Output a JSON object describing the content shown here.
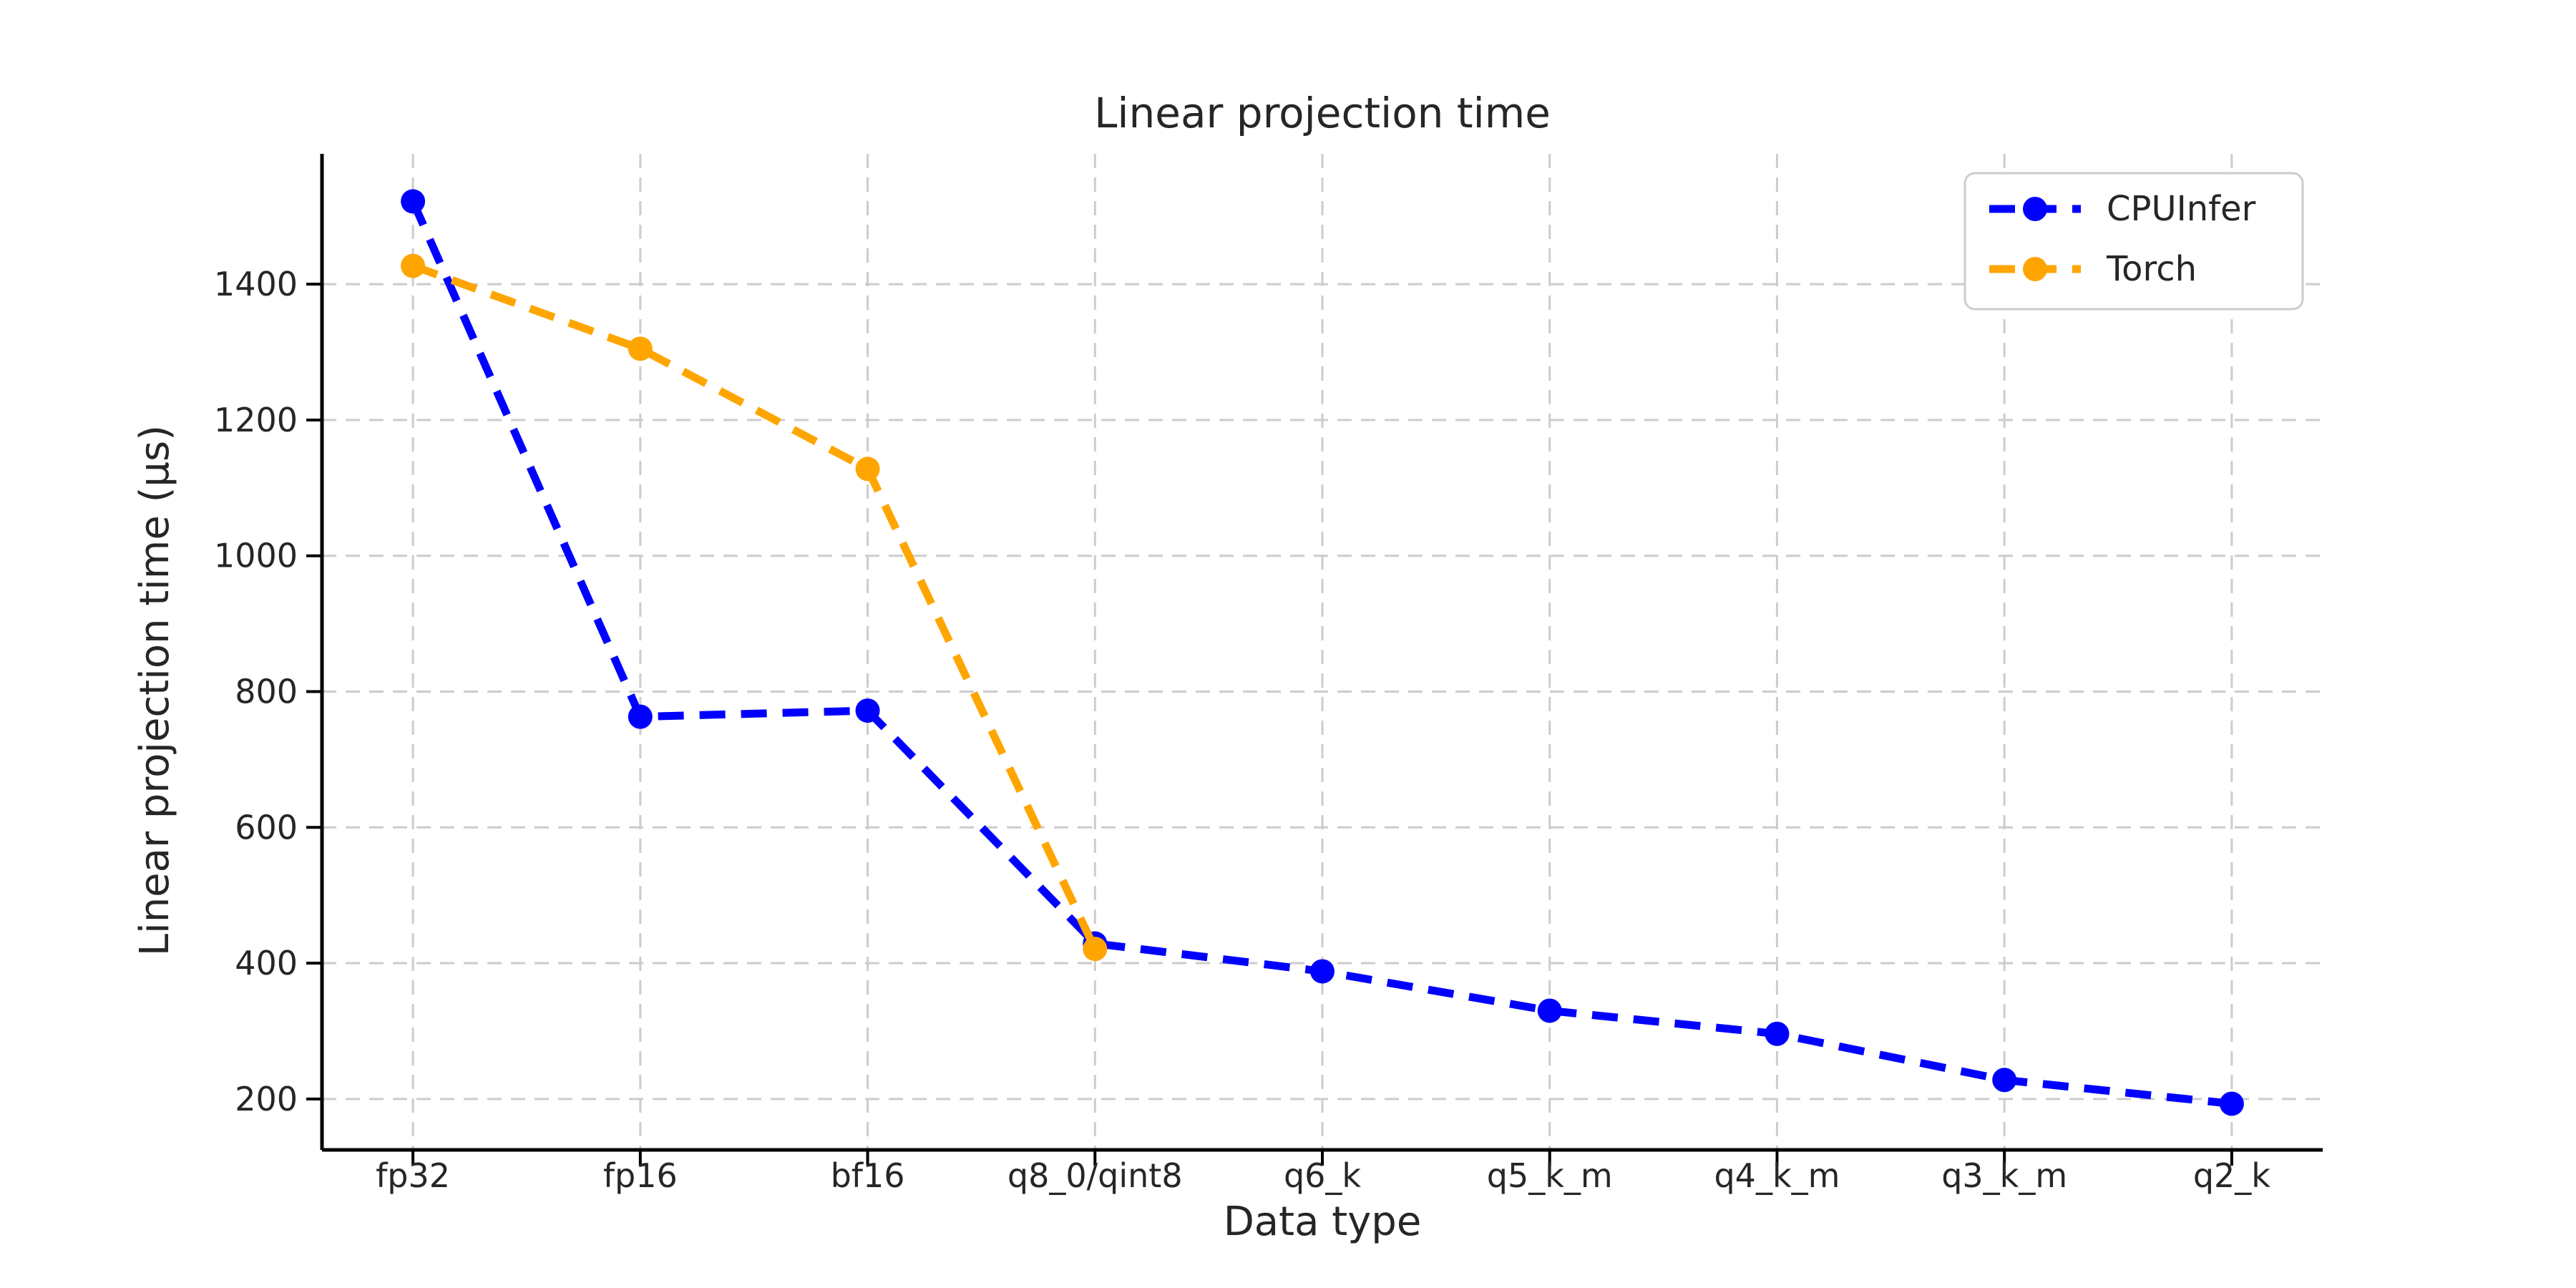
{
  "chart_data": {
    "type": "line",
    "title": "Linear projection time",
    "xlabel": "Data type",
    "ylabel": "Linear projection time (μs)",
    "categories": [
      "fp32",
      "fp16",
      "bf16",
      "q8_0/qint8",
      "q6_k",
      "q5_k_m",
      "q4_k_m",
      "q3_k_m",
      "q2_k"
    ],
    "series": [
      {
        "name": "CPUInfer",
        "color": "#0000ff",
        "values": [
          1522,
          763,
          772,
          429,
          388,
          330,
          296,
          228,
          193
        ]
      },
      {
        "name": "Torch",
        "color": "#ffa500",
        "values": [
          1427,
          1305,
          1128,
          421,
          null,
          null,
          null,
          null,
          null
        ]
      }
    ],
    "yticks": [
      200,
      400,
      600,
      800,
      1000,
      1200,
      1400
    ],
    "ylim": [
      125,
      1592
    ],
    "grid": true,
    "grid_color": "#cccccc",
    "line_style": "dashed",
    "marker": "circle",
    "legend_position": "upper right",
    "background": "#ffffff",
    "text_color": "#262626",
    "axis_color": "#000000"
  }
}
